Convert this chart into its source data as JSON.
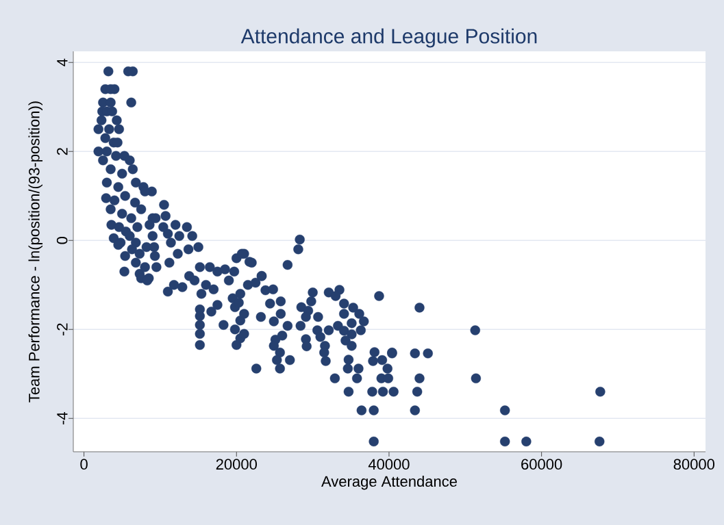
{
  "chart_data": {
    "type": "scatter",
    "title": "Attendance and League Position",
    "xlabel": "Average Attendance",
    "ylabel": "Team Performance - ln(position/(93-position))",
    "xlim": [
      -1400,
      81500
    ],
    "ylim": [
      -4.75,
      4.25
    ],
    "xticks": [
      0,
      20000,
      40000,
      60000,
      80000
    ],
    "yticks": [
      -4,
      -2,
      0,
      2,
      4
    ],
    "grid": "y",
    "marker": "circle",
    "color": "#26406f",
    "x": [
      3200,
      5800,
      6400,
      2800,
      3500,
      4000,
      2500,
      3500,
      6200,
      2400,
      3000,
      3700,
      2300,
      4300,
      4600,
      1900,
      3300,
      2800,
      3900,
      4400,
      3000,
      1900,
      2500,
      4200,
      5300,
      6000,
      3500,
      5000,
      6400,
      3000,
      4500,
      6800,
      7800,
      8900,
      2900,
      4000,
      5400,
      6700,
      8000,
      3500,
      5000,
      6200,
      7500,
      9000,
      10500,
      3600,
      4600,
      5500,
      7000,
      8600,
      9400,
      10700,
      3900,
      4800,
      6000,
      6800,
      9000,
      11000,
      12000,
      4500,
      5400,
      6300,
      7300,
      8200,
      9200,
      10400,
      11400,
      12500,
      13500,
      5300,
      6800,
      7300,
      8000,
      8500,
      9300,
      9500,
      11200,
      12300,
      13700,
      7500,
      8300,
      11000,
      11800,
      12900,
      13800,
      14200,
      15000,
      15200,
      14500,
      16000,
      15400,
      17000,
      16500,
      17500,
      18500,
      19000,
      20000,
      19700,
      15200,
      15200,
      15200,
      15200,
      15200,
      16700,
      17500,
      18300,
      19500,
      19800,
      20500,
      21000,
      22000,
      21500,
      23300,
      22500,
      19800,
      20000,
      20500,
      21000,
      20500,
      21000,
      20300,
      28300,
      28100,
      26700,
      20700,
      21700,
      23300,
      23800,
      24800,
      24400,
      25800,
      25800,
      23200,
      24900,
      26700,
      26000,
      25100,
      24900,
      25700,
      25300,
      27000,
      25700,
      22600,
      30000,
      29800,
      28500,
      29400,
      29100,
      30700,
      28400,
      29100,
      29200,
      30600,
      31000,
      32100,
      31600,
      31500,
      31700,
      32900,
      32100,
      33500,
      33000,
      34100,
      34100,
      35300,
      36100,
      36700,
      35100,
      33300,
      34100,
      35100,
      34300,
      35100,
      36300,
      34700,
      34600,
      36000,
      35800,
      34700,
      36400,
      38000,
      38000,
      38100,
      37900,
      39100,
      39800,
      39000,
      39900,
      37800,
      39200,
      40600,
      40400,
      38700,
      44000,
      51300,
      40400,
      43400,
      45100,
      44000,
      51400,
      43700,
      67700,
      43400,
      55200,
      55200,
      58000,
      67600
    ],
    "values": [
      3.8,
      3.8,
      3.8,
      3.4,
      3.4,
      3.4,
      3.1,
      3.1,
      3.1,
      2.9,
      2.9,
      2.9,
      2.7,
      2.7,
      2.5,
      2.5,
      2.5,
      2.3,
      2.2,
      2.2,
      2.0,
      2.0,
      1.8,
      1.9,
      1.9,
      1.8,
      1.6,
      1.5,
      1.6,
      1.3,
      1.2,
      1.3,
      1.2,
      1.1,
      0.95,
      0.9,
      1.0,
      0.85,
      1.1,
      0.7,
      0.6,
      0.5,
      0.7,
      0.5,
      0.8,
      0.35,
      0.3,
      0.2,
      0.3,
      0.35,
      0.5,
      0.55,
      0.05,
      -0.05,
      0.1,
      -0.05,
      0.1,
      0.15,
      0.35,
      -0.1,
      -0.35,
      -0.2,
      -0.3,
      -0.15,
      -0.15,
      0.3,
      -0.05,
      0.1,
      0.3,
      -0.7,
      -0.5,
      -0.75,
      -0.6,
      -0.85,
      -0.35,
      -0.6,
      -0.5,
      -0.3,
      -0.2,
      -0.85,
      -0.9,
      -1.15,
      -1.0,
      -1.05,
      -0.8,
      0.1,
      -0.15,
      -0.6,
      -0.9,
      -1.0,
      -1.2,
      -1.1,
      -0.6,
      -0.7,
      -0.65,
      -0.9,
      -0.4,
      -0.7,
      -1.55,
      -1.7,
      -1.9,
      -2.1,
      -2.35,
      -1.6,
      -1.45,
      -1.9,
      -1.3,
      -1.5,
      -1.2,
      -0.3,
      -0.5,
      -1.0,
      -0.8,
      -0.95,
      -2.0,
      -2.35,
      -2.2,
      -2.1,
      -1.8,
      -1.65,
      -1.4,
      0.02,
      -0.2,
      -0.55,
      -0.3,
      -0.48,
      -0.8,
      -1.12,
      -1.1,
      -1.42,
      -1.37,
      -1.65,
      -1.72,
      -1.82,
      -1.92,
      -2.14,
      -2.23,
      -2.37,
      -2.52,
      -2.69,
      -2.69,
      -2.88,
      -2.88,
      -1.17,
      -1.37,
      -1.5,
      -1.58,
      -1.72,
      -1.72,
      -1.92,
      -2.22,
      -2.38,
      -2.02,
      -2.17,
      -2.02,
      -2.37,
      -2.52,
      -2.71,
      -3.1,
      -1.17,
      -1.11,
      -1.25,
      -1.42,
      -1.65,
      -1.51,
      -1.65,
      -1.82,
      -1.86,
      -1.92,
      -2.03,
      -2.11,
      -2.25,
      -2.37,
      -2.02,
      -2.68,
      -2.88,
      -2.88,
      -3.1,
      -3.4,
      -3.82,
      -3.82,
      -4.52,
      -2.51,
      -2.71,
      -2.69,
      -2.88,
      -3.1,
      -3.1,
      -3.4,
      -3.4,
      -3.4,
      -2.52,
      -1.25,
      -1.51,
      -2.02,
      -2.54,
      -2.54,
      -2.54,
      -3.1,
      -3.1,
      -3.4,
      -3.4,
      -3.82,
      -3.82,
      -4.52,
      -4.52,
      -4.52
    ]
  }
}
